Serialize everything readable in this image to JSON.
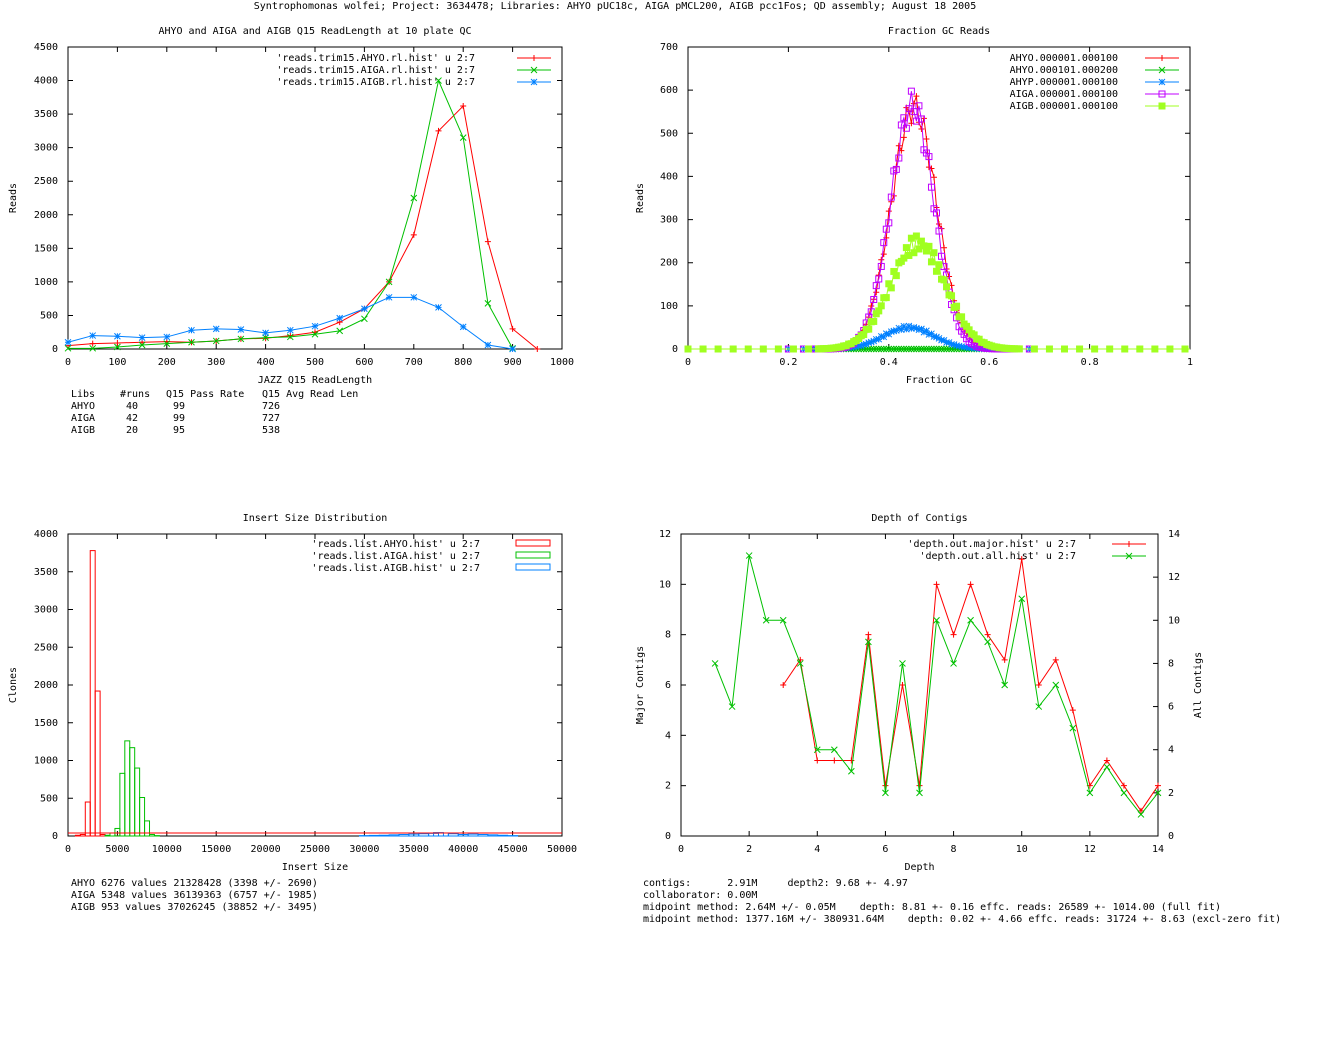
{
  "page_title": "Syntrophomonas wolfei; Project: 3634478; Libraries: AHYO pUC18c, AIGA pMCL200, AIGB pcc1Fos; QD assembly; August 18 2005",
  "colors": {
    "red": "#ff0000",
    "green": "#00c000",
    "blue": "#0080ff",
    "magenta": "#c000ff",
    "lime": "#a0ff20"
  },
  "chart_data": [
    {
      "id": "readlength",
      "type": "line",
      "title": "AHYO and AIGA and AIGB Q15 ReadLength at 10 plate QC",
      "xlabel": "JAZZ Q15 ReadLength",
      "ylabel": "Reads",
      "xlim": [
        0,
        1000
      ],
      "ylim": [
        0,
        4500
      ],
      "xticks": [
        0,
        100,
        200,
        300,
        400,
        500,
        600,
        700,
        800,
        900,
        1000
      ],
      "yticks": [
        0,
        500,
        1000,
        1500,
        2000,
        2500,
        3000,
        3500,
        4000,
        4500
      ],
      "series": [
        {
          "name": "'reads.trim15.AHYO.rl.hist' u 2:7",
          "color": "#ff0000",
          "marker": "plus",
          "points": [
            [
              0,
              50
            ],
            [
              50,
              80
            ],
            [
              100,
              90
            ],
            [
              150,
              100
            ],
            [
              200,
              110
            ],
            [
              250,
              100
            ],
            [
              300,
              120
            ],
            [
              350,
              150
            ],
            [
              400,
              160
            ],
            [
              450,
              200
            ],
            [
              500,
              250
            ],
            [
              550,
              400
            ],
            [
              600,
              600
            ],
            [
              650,
              1000
            ],
            [
              700,
              1700
            ],
            [
              750,
              3250
            ],
            [
              800,
              3620
            ],
            [
              850,
              1600
            ],
            [
              900,
              300
            ],
            [
              950,
              0
            ]
          ]
        },
        {
          "name": "'reads.trim15.AIGA.rl.hist' u 2:7",
          "color": "#00c000",
          "marker": "cross",
          "points": [
            [
              0,
              10
            ],
            [
              50,
              10
            ],
            [
              100,
              30
            ],
            [
              150,
              60
            ],
            [
              200,
              80
            ],
            [
              250,
              100
            ],
            [
              300,
              120
            ],
            [
              350,
              150
            ],
            [
              400,
              170
            ],
            [
              450,
              180
            ],
            [
              500,
              220
            ],
            [
              550,
              270
            ],
            [
              600,
              450
            ],
            [
              650,
              1000
            ],
            [
              700,
              2250
            ],
            [
              750,
              4000
            ],
            [
              800,
              3150
            ],
            [
              850,
              680
            ],
            [
              900,
              10
            ]
          ]
        },
        {
          "name": "'reads.trim15.AIGB.rl.hist' u 2:7",
          "color": "#0080ff",
          "marker": "star",
          "points": [
            [
              0,
              100
            ],
            [
              50,
              200
            ],
            [
              100,
              190
            ],
            [
              150,
              170
            ],
            [
              200,
              180
            ],
            [
              250,
              280
            ],
            [
              300,
              300
            ],
            [
              350,
              290
            ],
            [
              400,
              240
            ],
            [
              450,
              280
            ],
            [
              500,
              340
            ],
            [
              550,
              460
            ],
            [
              600,
              600
            ],
            [
              650,
              770
            ],
            [
              700,
              770
            ],
            [
              750,
              620
            ],
            [
              800,
              330
            ],
            [
              850,
              60
            ],
            [
              900,
              0
            ]
          ]
        }
      ],
      "stats": {
        "header": [
          "Libs",
          "#runs",
          "Q15 Pass Rate",
          "Q15 Avg Read Len"
        ],
        "rows": [
          [
            "AHYO",
            "40",
            "99",
            "726"
          ],
          [
            "AIGA",
            "42",
            "99",
            "727"
          ],
          [
            "AIGB",
            "20",
            "95",
            "538"
          ]
        ]
      }
    },
    {
      "id": "gc",
      "type": "scatter",
      "title": "Fraction GC Reads",
      "xlabel": "Fraction GC",
      "ylabel": "Reads",
      "xlim": [
        0,
        1
      ],
      "ylim": [
        0,
        700
      ],
      "xticks": [
        0,
        0.2,
        0.4,
        0.6,
        0.8,
        1
      ],
      "yticks": [
        0,
        100,
        200,
        300,
        400,
        500,
        600,
        700
      ],
      "series": [
        {
          "name": "AHYO.000001.000100",
          "color": "#ff0000",
          "marker": "plus",
          "peak": 560,
          "center": 0.45,
          "sigma": 0.045,
          "range": [
            0.2,
            0.7
          ]
        },
        {
          "name": "AHYO.000101.000200",
          "color": "#00c000",
          "marker": "cross",
          "peak": 0,
          "center": 0.45,
          "sigma": 0.05,
          "range": [
            0.0,
            1.0
          ]
        },
        {
          "name": "AHYP.000001.000100",
          "color": "#0080ff",
          "marker": "star",
          "peak": 50,
          "center": 0.44,
          "sigma": 0.05,
          "range": [
            0.2,
            0.7
          ]
        },
        {
          "name": "AIGA.000001.000100",
          "color": "#c000ff",
          "marker": "square",
          "peak": 565,
          "center": 0.447,
          "sigma": 0.043,
          "range": [
            0.2,
            0.7
          ]
        },
        {
          "name": "AIGB.000001.000100",
          "color": "#a0ff20",
          "marker": "filled-square",
          "peak": 245,
          "center": 0.458,
          "sigma": 0.055,
          "range": [
            0.0,
            1.0
          ]
        }
      ]
    },
    {
      "id": "insert",
      "type": "histogram",
      "title": "Insert Size Distribution",
      "xlabel": "Insert Size",
      "ylabel": "Clones",
      "xlim": [
        0,
        50000
      ],
      "ylim": [
        0,
        4000
      ],
      "xticks": [
        0,
        5000,
        10000,
        15000,
        20000,
        25000,
        30000,
        35000,
        40000,
        45000,
        50000
      ],
      "yticks": [
        0,
        500,
        1000,
        1500,
        2000,
        2500,
        3000,
        3500,
        4000
      ],
      "series": [
        {
          "name": "'reads.list.AHYO.hist' u 2:7",
          "color": "#ff0000",
          "bars": [
            [
              1000,
              10
            ],
            [
              1500,
              20
            ],
            [
              2000,
              450
            ],
            [
              2500,
              3780
            ],
            [
              3000,
              1920
            ],
            [
              3500,
              20
            ],
            [
              4000,
              5
            ],
            [
              5000,
              2
            ],
            [
              10000,
              0
            ]
          ]
        },
        {
          "name": "'reads.list.AIGA.hist' u 2:7",
          "color": "#00c000",
          "bars": [
            [
              4000,
              10
            ],
            [
              4500,
              40
            ],
            [
              5000,
              100
            ],
            [
              5500,
              830
            ],
            [
              6000,
              1260
            ],
            [
              6500,
              1170
            ],
            [
              7000,
              900
            ],
            [
              7500,
              510
            ],
            [
              8000,
              200
            ],
            [
              8500,
              20
            ],
            [
              9000,
              5
            ]
          ]
        },
        {
          "name": "'reads.list.AIGB.hist' u 2:7",
          "color": "#0080ff",
          "bars": [
            [
              30000,
              5
            ],
            [
              31000,
              8
            ],
            [
              32000,
              10
            ],
            [
              33000,
              15
            ],
            [
              34000,
              20
            ],
            [
              35000,
              25
            ],
            [
              36000,
              30
            ],
            [
              37000,
              35
            ],
            [
              37500,
              45
            ],
            [
              38000,
              40
            ],
            [
              39000,
              30
            ],
            [
              40000,
              20
            ],
            [
              41000,
              25
            ],
            [
              42000,
              20
            ],
            [
              43000,
              15
            ],
            [
              44000,
              10
            ],
            [
              45000,
              5
            ]
          ]
        }
      ],
      "stats_lines": [
        "AHYO 6276 values 21328428 (3398 +/- 2690)",
        "AIGA 5348 values 36139363 (6757 +/- 1985)",
        "AIGB 953 values 37026245 (38852 +/- 3495)"
      ]
    },
    {
      "id": "depth",
      "type": "line",
      "title": "Depth of Contigs",
      "xlabel": "Depth",
      "ylabel": "Major Contigs",
      "y2label": "All Contigs",
      "xlim": [
        0,
        14
      ],
      "ylim": [
        0,
        12
      ],
      "y2lim": [
        0,
        14
      ],
      "xticks": [
        0,
        2,
        4,
        6,
        8,
        10,
        12,
        14
      ],
      "yticks": [
        0,
        2,
        4,
        6,
        8,
        10,
        12
      ],
      "y2ticks": [
        0,
        2,
        4,
        6,
        8,
        10,
        12,
        14
      ],
      "series": [
        {
          "name": "'depth.out.major.hist' u 2:7",
          "color": "#ff0000",
          "marker": "plus",
          "axis": "y",
          "points": [
            [
              3,
              6
            ],
            [
              3.5,
              7
            ],
            [
              4,
              3
            ],
            [
              4.5,
              3
            ],
            [
              5,
              3
            ],
            [
              5.5,
              8
            ],
            [
              6,
              2
            ],
            [
              6.5,
              6
            ],
            [
              7,
              2
            ],
            [
              7.5,
              10
            ],
            [
              8,
              8
            ],
            [
              8.5,
              10
            ],
            [
              9,
              8
            ],
            [
              9.5,
              7
            ],
            [
              10,
              11
            ],
            [
              10.5,
              6
            ],
            [
              11,
              7
            ],
            [
              11.5,
              5
            ],
            [
              12,
              2
            ],
            [
              12.5,
              3
            ],
            [
              13,
              2
            ],
            [
              13.5,
              1
            ],
            [
              14,
              2
            ]
          ]
        },
        {
          "name": "'depth.out.all.hist' u 2:7",
          "color": "#00c000",
          "marker": "cross",
          "axis": "y2",
          "points": [
            [
              1,
              8
            ],
            [
              1.5,
              6
            ],
            [
              2,
              13
            ],
            [
              2.5,
              10
            ],
            [
              3,
              10
            ],
            [
              3.5,
              8
            ],
            [
              4,
              4
            ],
            [
              4.5,
              4
            ],
            [
              5,
              3
            ],
            [
              5.5,
              9
            ],
            [
              6,
              2
            ],
            [
              6.5,
              8
            ],
            [
              7,
              2
            ],
            [
              7.5,
              10
            ],
            [
              8,
              8
            ],
            [
              8.5,
              10
            ],
            [
              9,
              9
            ],
            [
              9.5,
              7
            ],
            [
              10,
              11
            ],
            [
              10.5,
              6
            ],
            [
              11,
              7
            ],
            [
              11.5,
              5
            ],
            [
              12,
              2
            ],
            [
              12.5,
              3.2
            ],
            [
              13,
              2
            ],
            [
              13.5,
              1
            ],
            [
              14,
              2
            ]
          ]
        }
      ],
      "stats_lines": [
        "contigs:      2.91M     depth2: 9.68 +- 4.97",
        "collaborator: 0.00M",
        "midpoint method: 2.64M +/- 0.05M    depth: 8.81 +- 0.16 effc. reads: 26589 +- 1014.00 (full fit)",
        "midpoint method: 1377.16M +/- 380931.64M    depth: 0.02 +- 4.66 effc. reads: 31724 +- 8.63 (excl-zero fit)"
      ]
    }
  ]
}
